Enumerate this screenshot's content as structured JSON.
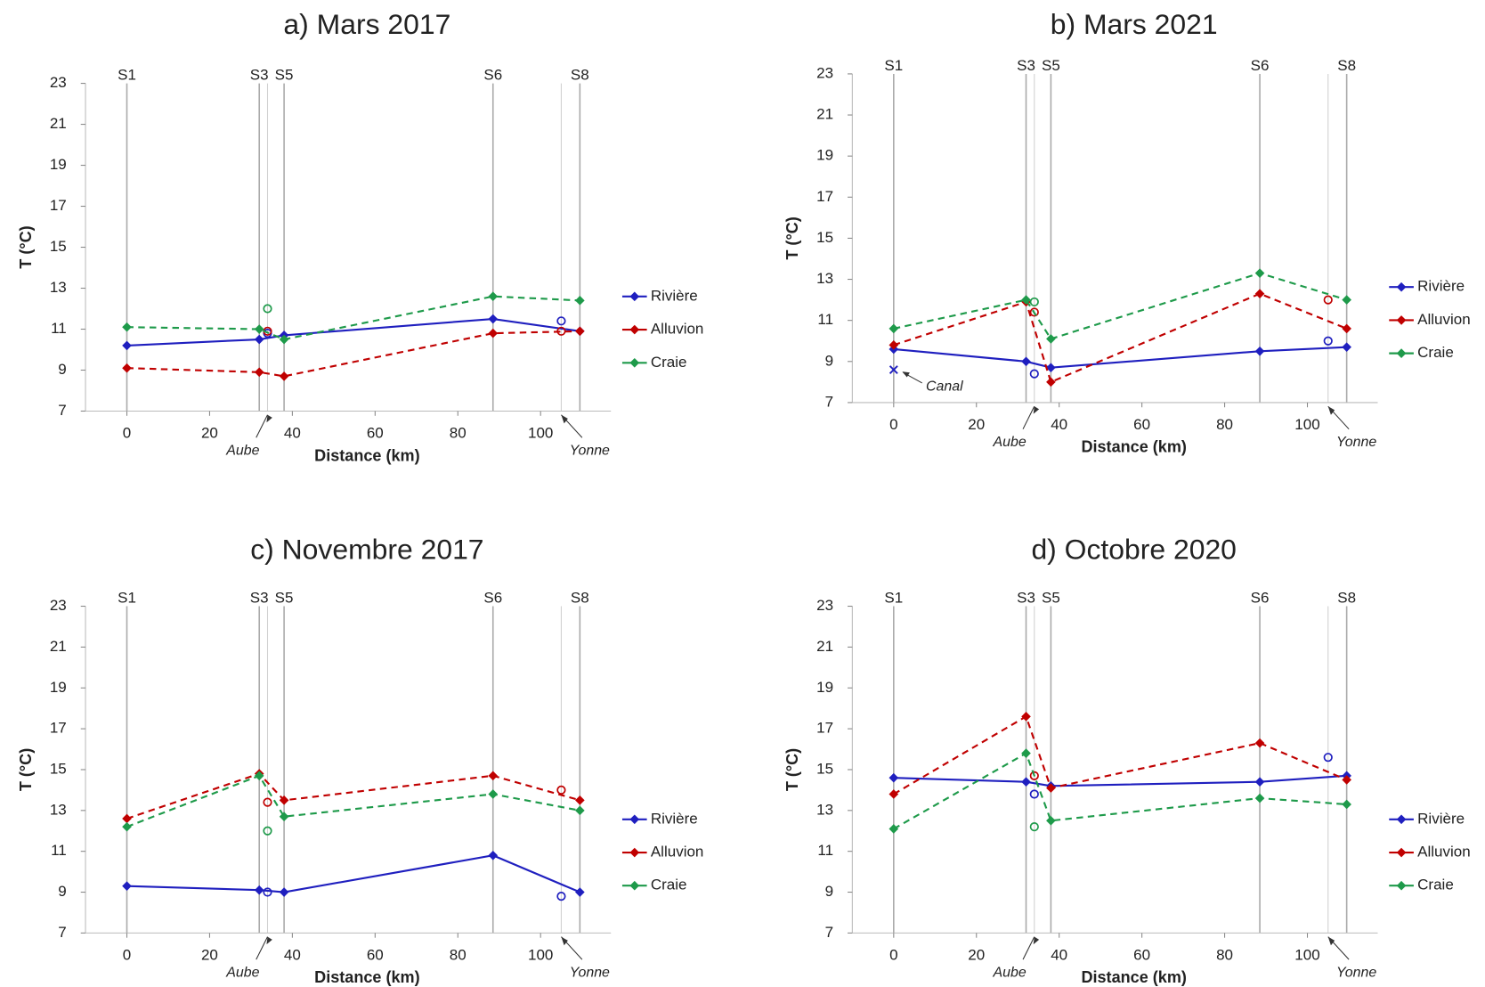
{
  "chart_data": [
    {
      "type": "line",
      "title": "a) Mars 2017",
      "xlabel": "Distance (km)",
      "ylabel": "T (°C)",
      "xlim": [
        -10,
        117
      ],
      "ylim": [
        7,
        23
      ],
      "xticks": [
        0,
        20,
        40,
        60,
        80,
        100
      ],
      "yticks": [
        7,
        9,
        11,
        13,
        15,
        17,
        19,
        21,
        23
      ],
      "legend": "right",
      "stations": {
        "labels": [
          "S1",
          "S3",
          "S5",
          "S6",
          "S8"
        ],
        "x": [
          0,
          32,
          38,
          88.5,
          109.5
        ]
      },
      "tributaries": [
        {
          "label": "Aube",
          "x": 34
        },
        {
          "label": "Yonne",
          "x": 105
        }
      ],
      "series": [
        {
          "name": "Rivière",
          "color": "#1f1fbf",
          "linestyle": "solid",
          "values": [
            10.2,
            10.5,
            10.7,
            11.5,
            10.9
          ],
          "tributary_values": [
            10.8,
            11.4
          ]
        },
        {
          "name": "Alluvion",
          "color": "#c00000",
          "linestyle": "dashed",
          "values": [
            9.1,
            8.9,
            8.7,
            10.8,
            10.9
          ],
          "tributary_values": [
            10.9,
            10.9
          ]
        },
        {
          "name": "Craie",
          "color": "#1e9a4a",
          "linestyle": "dashed",
          "values": [
            11.1,
            11.0,
            10.5,
            12.6,
            12.4
          ],
          "tributary_values": [
            12.0,
            null
          ]
        }
      ],
      "annotations": []
    },
    {
      "type": "line",
      "title": "b) Mars 2021",
      "xlabel": "Distance (km)",
      "ylabel": "T (°C)",
      "xlim": [
        -10,
        117
      ],
      "ylim": [
        7,
        23
      ],
      "xticks": [
        0,
        20,
        40,
        60,
        80,
        100
      ],
      "yticks": [
        7,
        9,
        11,
        13,
        15,
        17,
        19,
        21,
        23
      ],
      "legend": "right",
      "stations": {
        "labels": [
          "S1",
          "S3",
          "S5",
          "S6",
          "S8"
        ],
        "x": [
          0,
          32,
          38,
          88.5,
          109.5
        ]
      },
      "tributaries": [
        {
          "label": "Aube",
          "x": 34
        },
        {
          "label": "Yonne",
          "x": 105
        }
      ],
      "series": [
        {
          "name": "Rivière",
          "color": "#1f1fbf",
          "linestyle": "solid",
          "values": [
            9.6,
            9.0,
            8.7,
            9.5,
            9.7
          ],
          "tributary_values": [
            8.4,
            10.0
          ]
        },
        {
          "name": "Alluvion",
          "color": "#c00000",
          "linestyle": "dashed",
          "values": [
            9.8,
            11.9,
            8.0,
            12.3,
            10.6
          ],
          "tributary_values": [
            11.4,
            12.0
          ]
        },
        {
          "name": "Craie",
          "color": "#1e9a4a",
          "linestyle": "dashed",
          "values": [
            10.6,
            12.0,
            10.1,
            13.3,
            12.0
          ],
          "tributary_values": [
            11.9,
            null
          ]
        }
      ],
      "annotations": [
        {
          "label": "Canal",
          "x": 0,
          "y": 8.6,
          "series": 0
        }
      ]
    },
    {
      "type": "line",
      "title": "c) Novembre 2017",
      "xlabel": "Distance (km)",
      "ylabel": "T (°C)",
      "xlim": [
        -10,
        117
      ],
      "ylim": [
        7,
        23
      ],
      "xticks": [
        0,
        20,
        40,
        60,
        80,
        100
      ],
      "yticks": [
        7,
        9,
        11,
        13,
        15,
        17,
        19,
        21,
        23
      ],
      "legend": "right",
      "stations": {
        "labels": [
          "S1",
          "S3",
          "S5",
          "S6",
          "S8"
        ],
        "x": [
          0,
          32,
          38,
          88.5,
          109.5
        ]
      },
      "tributaries": [
        {
          "label": "Aube",
          "x": 34
        },
        {
          "label": "Yonne",
          "x": 105
        }
      ],
      "series": [
        {
          "name": "Rivière",
          "color": "#1f1fbf",
          "linestyle": "solid",
          "values": [
            9.3,
            9.1,
            9.0,
            10.8,
            9.0
          ],
          "tributary_values": [
            9.0,
            8.8
          ]
        },
        {
          "name": "Alluvion",
          "color": "#c00000",
          "linestyle": "dashed",
          "values": [
            12.6,
            14.8,
            13.5,
            14.7,
            13.5
          ],
          "tributary_values": [
            13.4,
            14.0
          ]
        },
        {
          "name": "Craie",
          "color": "#1e9a4a",
          "linestyle": "dashed",
          "values": [
            12.2,
            14.7,
            12.7,
            13.8,
            13.0
          ],
          "tributary_values": [
            12.0,
            null
          ]
        }
      ],
      "annotations": []
    },
    {
      "type": "line",
      "title": "d) Octobre 2020",
      "xlabel": "Distance (km)",
      "ylabel": "T (°C)",
      "xlim": [
        -10,
        117
      ],
      "ylim": [
        7,
        23
      ],
      "xticks": [
        0,
        20,
        40,
        60,
        80,
        100
      ],
      "yticks": [
        7,
        9,
        11,
        13,
        15,
        17,
        19,
        21,
        23
      ],
      "legend": "right",
      "stations": {
        "labels": [
          "S1",
          "S3",
          "S5",
          "S6",
          "S8"
        ],
        "x": [
          0,
          32,
          38,
          88.5,
          109.5
        ]
      },
      "tributaries": [
        {
          "label": "Aube",
          "x": 34
        },
        {
          "label": "Yonne",
          "x": 105
        }
      ],
      "series": [
        {
          "name": "Rivière",
          "color": "#1f1fbf",
          "linestyle": "solid",
          "values": [
            14.6,
            14.4,
            14.2,
            14.4,
            14.7
          ],
          "tributary_values": [
            13.8,
            15.6
          ]
        },
        {
          "name": "Alluvion",
          "color": "#c00000",
          "linestyle": "dashed",
          "values": [
            13.8,
            17.6,
            14.1,
            16.3,
            14.5
          ],
          "tributary_values": [
            14.7,
            null
          ]
        },
        {
          "name": "Craie",
          "color": "#1e9a4a",
          "linestyle": "dashed",
          "values": [
            12.1,
            15.8,
            12.5,
            13.6,
            13.3
          ],
          "tributary_values": [
            12.2,
            null
          ]
        }
      ],
      "annotations": []
    }
  ]
}
